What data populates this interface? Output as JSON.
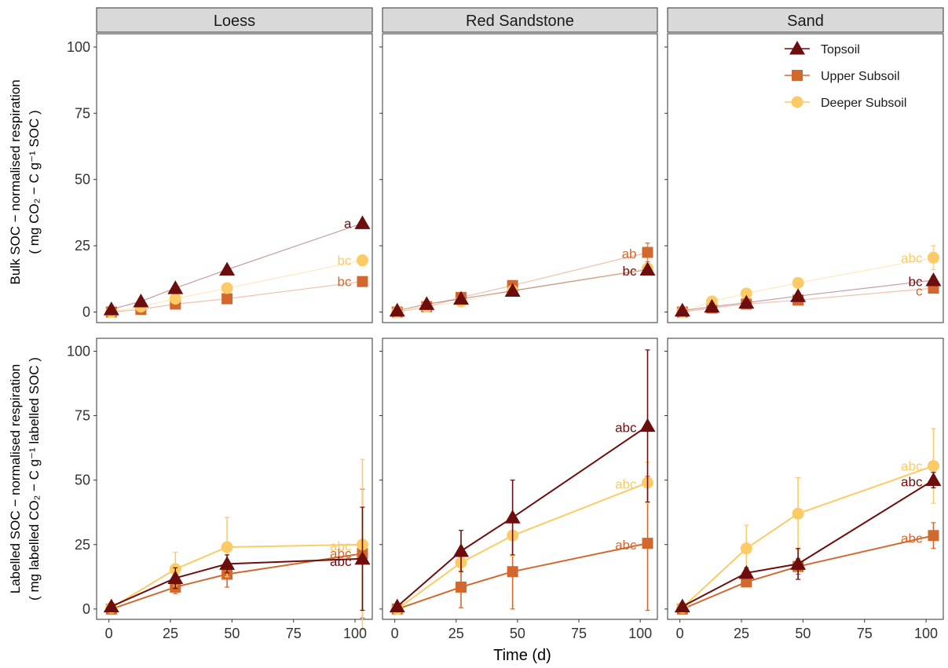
{
  "chart_data": {
    "type": "line",
    "xlabel": "Time (d)",
    "ylabels": {
      "top": {
        "line1": "Bulk SOC − normalised respiration",
        "line2": "( mg CO₂ − C g⁻¹ SOC )"
      },
      "bottom": {
        "line1": "Labelled SOC − normalised respiration",
        "line2": "( mg labelled CO₂ − C g⁻¹ labelled SOC )"
      }
    },
    "xlim": [
      -5,
      107
    ],
    "ylim": [
      -4,
      105
    ],
    "xticks": [
      "0",
      "25",
      "50",
      "75",
      "100"
    ],
    "yticks": [
      "0",
      "25",
      "50",
      "75",
      "100"
    ],
    "columns": [
      "Loess",
      "Red Sandstone",
      "Sand"
    ],
    "legend": {
      "placement": "top-right",
      "entries": [
        "Topsoil",
        "Upper Subsoil",
        "Deeper Subsoil"
      ]
    },
    "series_styles": {
      "Topsoil": {
        "color": "#6e0d0d",
        "marker": "triangle"
      },
      "Upper Subsoil": {
        "color": "#d3682e",
        "marker": "square"
      },
      "Deeper Subsoil": {
        "color": "#fccb66",
        "marker": "circle"
      }
    },
    "panels": [
      {
        "row": "top",
        "col": 0,
        "faded": true,
        "series": [
          {
            "name": "Topsoil",
            "points": [
              [
                1,
                1
              ],
              [
                13,
                4
              ],
              [
                27,
                9
              ],
              [
                48,
                16
              ],
              [
                103,
                33.5
              ]
            ],
            "err": [
              0,
              0,
              0,
              0,
              0.8
            ]
          },
          {
            "name": "Upper Subsoil",
            "points": [
              [
                1,
                0
              ],
              [
                13,
                1
              ],
              [
                27,
                3
              ],
              [
                48,
                5
              ],
              [
                103,
                11.5
              ]
            ],
            "err": [
              0,
              0,
              0,
              0,
              0.8
            ]
          },
          {
            "name": "Deeper Subsoil",
            "points": [
              [
                1,
                0
              ],
              [
                13,
                2
              ],
              [
                27,
                5
              ],
              [
                48,
                9
              ],
              [
                103,
                19.5
              ]
            ],
            "err": [
              0,
              0,
              0,
              0,
              2
            ]
          }
        ],
        "letters": [
          {
            "text": "a",
            "series": "Topsoil",
            "y": 33.5
          },
          {
            "text": "bc",
            "series": "Deeper Subsoil",
            "y": 19.5
          },
          {
            "text": "bc",
            "series": "Upper Subsoil",
            "y": 11.5
          }
        ]
      },
      {
        "row": "top",
        "col": 1,
        "faded": true,
        "series": [
          {
            "name": "Topsoil",
            "points": [
              [
                1,
                0.5
              ],
              [
                13,
                3
              ],
              [
                27,
                5
              ],
              [
                48,
                8
              ],
              [
                103,
                16
              ]
            ],
            "err": [
              0,
              0,
              0,
              0,
              1
            ]
          },
          {
            "name": "Upper Subsoil",
            "points": [
              [
                1,
                0
              ],
              [
                13,
                2
              ],
              [
                27,
                5.5
              ],
              [
                48,
                10
              ],
              [
                103,
                22.5
              ]
            ],
            "err": [
              0,
              0,
              0,
              0,
              3.5
            ]
          },
          {
            "name": "Deeper Subsoil",
            "points": [
              [
                1,
                0
              ],
              [
                13,
                2
              ],
              [
                27,
                4
              ],
              [
                48,
                8
              ],
              [
                103,
                16.5
              ]
            ],
            "err": [
              0,
              0,
              0,
              0,
              1
            ]
          }
        ],
        "letters": [
          {
            "text": "ab",
            "series": "Upper Subsoil",
            "y": 22
          },
          {
            "text": "bc",
            "series": "Topsoil",
            "y": 15.5
          }
        ]
      },
      {
        "row": "top",
        "col": 2,
        "faded": true,
        "series": [
          {
            "name": "Topsoil",
            "points": [
              [
                1,
                0.5
              ],
              [
                13,
                2
              ],
              [
                27,
                3.5
              ],
              [
                48,
                6
              ],
              [
                103,
                12
              ]
            ],
            "err": [
              0,
              0,
              0,
              0,
              1.5
            ]
          },
          {
            "name": "Upper Subsoil",
            "points": [
              [
                1,
                0
              ],
              [
                13,
                1.5
              ],
              [
                27,
                3
              ],
              [
                48,
                4.5
              ],
              [
                103,
                9
              ]
            ],
            "err": [
              0,
              0,
              0,
              0,
              1
            ]
          },
          {
            "name": "Deeper Subsoil",
            "points": [
              [
                1,
                0
              ],
              [
                13,
                4
              ],
              [
                27,
                7
              ],
              [
                48,
                11
              ],
              [
                103,
                20.5
              ]
            ],
            "err": [
              0,
              0,
              0,
              0,
              4.5
            ]
          }
        ],
        "letters": [
          {
            "text": "abc",
            "series": "Deeper Subsoil",
            "y": 20.5
          },
          {
            "text": "bc",
            "series": "Topsoil",
            "y": 11.5
          },
          {
            "text": "c",
            "series": "Upper Subsoil",
            "y": 8
          }
        ]
      },
      {
        "row": "bottom",
        "col": 0,
        "faded": false,
        "series": [
          {
            "name": "Topsoil",
            "points": [
              [
                1,
                1
              ],
              [
                27,
                12
              ],
              [
                48,
                17.5
              ],
              [
                103,
                19.5
              ]
            ],
            "err": [
              0,
              4,
              3.5,
              20
            ]
          },
          {
            "name": "Upper Subsoil",
            "points": [
              [
                1,
                0
              ],
              [
                27,
                8.5
              ],
              [
                48,
                13.5
              ],
              [
                103,
                21.5
              ]
            ],
            "err": [
              0,
              2.5,
              5,
              25
            ]
          },
          {
            "name": "Deeper Subsoil",
            "points": [
              [
                1,
                0.5
              ],
              [
                27,
                15.5
              ],
              [
                48,
                24
              ],
              [
                103,
                25
              ]
            ],
            "err": [
              0,
              6.5,
              11.5,
              33
            ]
          }
        ],
        "letters": [
          {
            "text": "abc",
            "series": "Deeper Subsoil",
            "y": 24.5
          },
          {
            "text": "abc",
            "series": "Upper Subsoil",
            "y": 21.5
          },
          {
            "text": "abc",
            "series": "Topsoil",
            "y": 18.5
          }
        ]
      },
      {
        "row": "bottom",
        "col": 1,
        "faded": false,
        "series": [
          {
            "name": "Topsoil",
            "points": [
              [
                1,
                1
              ],
              [
                27,
                22.5
              ],
              [
                48,
                35.5
              ],
              [
                103,
                71
              ]
            ],
            "err": [
              0,
              8,
              14.5,
              29.5
            ]
          },
          {
            "name": "Upper Subsoil",
            "points": [
              [
                1,
                0
              ],
              [
                27,
                8.5
              ],
              [
                48,
                14.5
              ],
              [
                103,
                25.5
              ]
            ],
            "err": [
              0,
              8,
              14.5,
              26
            ]
          },
          {
            "name": "Deeper Subsoil",
            "points": [
              [
                1,
                0
              ],
              [
                27,
                18
              ],
              [
                48,
                28.5
              ],
              [
                103,
                49
              ]
            ],
            "err": [
              0,
              3,
              8,
              8
            ]
          }
        ],
        "letters": [
          {
            "text": "abc",
            "series": "Topsoil",
            "y": 70.5
          },
          {
            "text": "abc",
            "series": "Deeper Subsoil",
            "y": 48.5
          },
          {
            "text": "abc",
            "series": "Upper Subsoil",
            "y": 25
          }
        ]
      },
      {
        "row": "bottom",
        "col": 2,
        "faded": false,
        "series": [
          {
            "name": "Topsoil",
            "points": [
              [
                1,
                1
              ],
              [
                27,
                14
              ],
              [
                48,
                17.5
              ],
              [
                103,
                50
              ]
            ],
            "err": [
              0,
              2,
              6,
              3
            ]
          },
          {
            "name": "Upper Subsoil",
            "points": [
              [
                1,
                0
              ],
              [
                27,
                10.5
              ],
              [
                48,
                16.5
              ],
              [
                103,
                28.5
              ]
            ],
            "err": [
              0,
              1.5,
              3,
              5
            ]
          },
          {
            "name": "Deeper Subsoil",
            "points": [
              [
                1,
                0.5
              ],
              [
                27,
                23.5
              ],
              [
                48,
                37
              ],
              [
                103,
                55.5
              ]
            ],
            "err": [
              0,
              9,
              14,
              14.5
            ]
          }
        ],
        "letters": [
          {
            "text": "abc",
            "series": "Deeper Subsoil",
            "y": 55.5
          },
          {
            "text": "abc",
            "series": "Topsoil",
            "y": 49.5
          },
          {
            "text": "abc",
            "series": "Upper Subsoil",
            "y": 27.5
          }
        ]
      }
    ]
  }
}
